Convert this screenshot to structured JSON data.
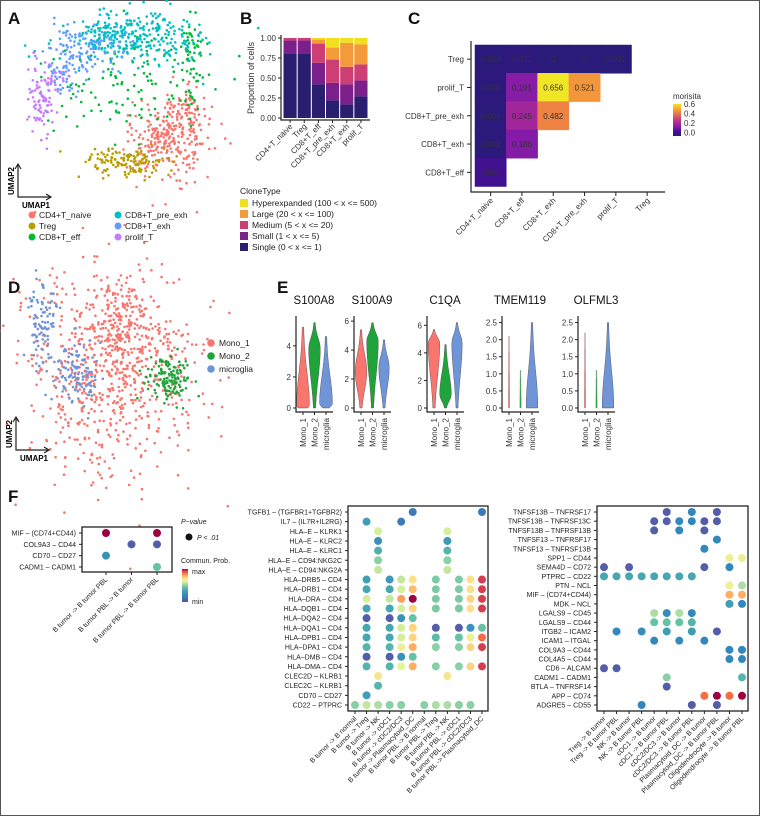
{
  "panels": {
    "A": "A",
    "B": "B",
    "C": "C",
    "D": "D",
    "E": "E",
    "F": "F"
  },
  "chart_data": [
    {
      "id": "A",
      "type": "scatter",
      "xlabel": "UMAP1",
      "ylabel": "UMAP2",
      "legend": [
        {
          "label": "CD4+T_naive",
          "color": "#f8766d"
        },
        {
          "label": "Treg",
          "color": "#b79f00"
        },
        {
          "label": "CD8+T_eff",
          "color": "#00ba38"
        },
        {
          "label": "CD8+T_pre_exh",
          "color": "#00bfc4"
        },
        {
          "label": "CD8+T_exh",
          "color": "#619cff"
        },
        {
          "label": "prolif_T",
          "color": "#c77cff"
        }
      ]
    },
    {
      "id": "B",
      "type": "bar",
      "stacked": true,
      "title": "",
      "xlabel": "",
      "ylabel": "Proportion of cells",
      "ylim": [
        0,
        1
      ],
      "yticks": [
        "0.00",
        "0.25",
        "0.50",
        "0.75",
        "1.00"
      ],
      "categories": [
        "CD4+T_naive",
        "Treg",
        "CD8+T_eff",
        "CD8+T_pre_exh",
        "CD8+T_exh",
        "prolif_T"
      ],
      "legend_title": "CloneType",
      "series": [
        {
          "name": "Single (0 < x <= 1)",
          "color": "#2a1f6e",
          "values": [
            0.81,
            0.81,
            0.42,
            0.22,
            0.17,
            0.27
          ]
        },
        {
          "name": "Small (1 < x <= 5)",
          "color": "#7b1f8a",
          "values": [
            0.16,
            0.16,
            0.27,
            0.22,
            0.25,
            0.2
          ]
        },
        {
          "name": "Medium (5 < x <= 20)",
          "color": "#cc3e74",
          "values": [
            0.03,
            0.03,
            0.24,
            0.29,
            0.22,
            0.2
          ]
        },
        {
          "name": "Large (20 < x <= 100)",
          "color": "#f39a3a",
          "values": [
            0,
            0,
            0.05,
            0.15,
            0.3,
            0.25
          ]
        },
        {
          "name": "Hyperexpanded (100 < x <= 500)",
          "color": "#f0e020",
          "values": [
            0,
            0,
            0.02,
            0.12,
            0.06,
            0.08
          ]
        }
      ]
    },
    {
      "id": "C",
      "type": "heatmap",
      "rows": [
        "Treg",
        "prolif_T",
        "CD8+T_pre_exh",
        "CD8+T_exh",
        "CD8+T_eff"
      ],
      "cols": [
        "CD4+T_naive",
        "CD8+T_eff",
        "CD8+T_exh",
        "CD8+T_pre_exh",
        "prolif_T",
        "Treg"
      ],
      "values": [
        [
          "0.004",
          "0.011",
          "0",
          "0",
          "0.001",
          null
        ],
        [
          "0.008",
          "0.191",
          "0.656",
          "0.521",
          null,
          null
        ],
        [
          "0.006",
          "0.245",
          "0.482",
          null,
          null,
          null
        ],
        [
          "0.002",
          "0.186",
          null,
          null,
          null,
          null
        ],
        [
          "0.066",
          null,
          null,
          null,
          null,
          null
        ]
      ],
      "legend_title": "morisita",
      "legend_ticks": [
        "0.6",
        "0.4",
        "0.2",
        "0.0"
      ],
      "range": [
        0,
        0.656
      ]
    },
    {
      "id": "D",
      "type": "scatter",
      "xlabel": "UMAP1",
      "ylabel": "UMAP2",
      "legend": [
        {
          "label": "Mono_1",
          "color": "#f8766d"
        },
        {
          "label": "Mono_2",
          "color": "#1fa33a"
        },
        {
          "label": "microglia",
          "color": "#6f94d8"
        }
      ]
    },
    {
      "id": "E",
      "type": "violin",
      "groups": [
        "Mono_1",
        "Mono_2",
        "microglia"
      ],
      "colors": [
        "#f8766d",
        "#1fa33a",
        "#6f94d8"
      ],
      "genes": [
        {
          "title": "S100A8",
          "yticks": [
            "0",
            "2",
            "4"
          ],
          "tickvals": [
            0,
            2,
            4
          ],
          "violins": [
            {
              "max": 5.2,
              "mode": 0.2,
              "width": 1
            },
            {
              "max": 5.5,
              "mode": 3.8,
              "width": 0.9
            },
            {
              "max": 4.6,
              "mode": 0.3,
              "width": 1
            }
          ]
        },
        {
          "title": "S100A9",
          "yticks": [
            "0",
            "2",
            "4",
            "6"
          ],
          "tickvals": [
            0,
            2,
            4,
            6
          ],
          "violins": [
            {
              "max": 5.4,
              "mode": 2.5,
              "width": 0.9
            },
            {
              "max": 5.9,
              "mode": 4.6,
              "width": 0.9
            },
            {
              "max": 4.7,
              "mode": 2.8,
              "width": 0.8
            }
          ]
        },
        {
          "title": "C1QA",
          "yticks": [
            "0",
            "2",
            "4",
            "6"
          ],
          "tickvals": [
            0,
            2,
            4,
            6
          ],
          "violins": [
            {
              "max": 5.7,
              "mode": 4.7,
              "width": 0.9
            },
            {
              "max": 4.6,
              "mode": 1.0,
              "width": 0.9
            },
            {
              "max": 6.2,
              "mode": 4.7,
              "width": 0.8
            }
          ]
        },
        {
          "title": "TMEM119",
          "yticks": [
            "0.0",
            "0.5",
            "1.0",
            "1.5",
            "2.0",
            "2.5"
          ],
          "tickvals": [
            0,
            0.5,
            1,
            1.5,
            2,
            2.5
          ],
          "violins": [
            {
              "max": 2.1,
              "mode": 0,
              "width": 0.05
            },
            {
              "max": 1.1,
              "mode": 0,
              "width": 0.05
            },
            {
              "max": 2.5,
              "mode": 0.05,
              "width": 0.9
            }
          ]
        },
        {
          "title": "OLFML3",
          "yticks": [
            "0.0",
            "0.5",
            "1.0",
            "1.5",
            "2.0",
            "2.5"
          ],
          "tickvals": [
            0,
            0.5,
            1,
            1.5,
            2,
            2.5
          ],
          "violins": [
            {
              "max": 2.2,
              "mode": 0,
              "width": 0.05
            },
            {
              "max": 1.1,
              "mode": 0,
              "width": 0.05
            },
            {
              "max": 2.5,
              "mode": 0.05,
              "width": 0.9
            }
          ]
        }
      ]
    },
    {
      "id": "F1",
      "type": "dotplot",
      "rows": [
        "MIF – (CD74+CD44)",
        "COL9A3 – CD44",
        "CD70 – CD27",
        "CADM1 – CADM1"
      ],
      "cols": [
        "B tumor -> B tumor PBL",
        "B tumor PBL -> B tumor",
        "B tumor PBL -> B tumor PBL"
      ],
      "values": [
        [
          1.0,
          null,
          1.0
        ],
        [
          null,
          0.05,
          0.05
        ],
        [
          0.25,
          null,
          null
        ],
        [
          null,
          null,
          0.45
        ]
      ],
      "legend": {
        "pvalue_title": "P−value",
        "pvalue_item": "P < .01",
        "prob_title": "Commun. Prob.",
        "max": "max",
        "min": "min"
      }
    },
    {
      "id": "F2",
      "type": "dotplot",
      "rows": [
        "TGFB1 – (TGFBR1+TGFBR2)",
        "IL7 – (IL7R+IL2RG)",
        "HLA–E – KLRK1",
        "HLA–E – KLRC2",
        "HLA–E – KLRC1",
        "HLA–E – CD94:NKG2C",
        "HLA–E – CD94:NKG2A",
        "HLA–DRB5 – CD4",
        "HLA–DRB1 – CD4",
        "HLA–DRA – CD4",
        "HLA–DQB1 – CD4",
        "HLA–DQA2 – CD4",
        "HLA–DQA1 – CD4",
        "HLA–DPB1 – CD4",
        "HLA–DPA1 – CD4",
        "HLA–DMB – CD4",
        "HLA–DMA – CD4",
        "CLEC2D – KLRB1",
        "CLEC2C – KLRB1",
        "CD70 – CD27",
        "CD22 – PTPRC"
      ],
      "cols": [
        "B tumor -> B normal",
        "B tumor -> Treg",
        "B tumor -> NK",
        "B tumor -> cDC1",
        "B tumor -> cDC2/DC3",
        "B tumor -> Plasmacytoid_DC",
        "B tumor PBL -> B normal",
        "B tumor PBL -> Treg",
        "B tumor PBL -> NK",
        "B tumor PBL -> cDC1",
        "B tumor PBL -> cDC2/DC3",
        "B tumor PBL -> Plasmacytoid_DC"
      ],
      "values": [
        [
          null,
          null,
          null,
          null,
          null,
          0.15,
          null,
          null,
          null,
          null,
          null,
          0.15
        ],
        [
          null,
          0.3,
          null,
          null,
          0.15,
          null,
          null,
          null,
          null,
          null,
          null,
          null
        ],
        [
          null,
          null,
          0.6,
          null,
          null,
          null,
          null,
          null,
          0.6,
          null,
          null,
          null
        ],
        [
          null,
          null,
          0.25,
          null,
          null,
          null,
          null,
          null,
          0.28,
          null,
          null,
          null
        ],
        [
          null,
          null,
          0.38,
          null,
          null,
          null,
          null,
          null,
          0.4,
          null,
          null,
          null
        ],
        [
          null,
          null,
          0.5,
          null,
          null,
          null,
          null,
          null,
          0.5,
          null,
          null,
          null
        ],
        [
          null,
          null,
          0.58,
          null,
          null,
          null,
          null,
          null,
          0.58,
          null,
          null,
          null
        ],
        [
          null,
          0.3,
          null,
          0.28,
          0.58,
          0.72,
          null,
          0.48,
          null,
          0.48,
          0.72,
          0.94
        ],
        [
          null,
          0.35,
          null,
          0.35,
          0.6,
          0.78,
          null,
          0.48,
          null,
          0.48,
          0.72,
          0.94
        ],
        [
          null,
          0.6,
          null,
          0.58,
          0.82,
          1.0,
          null,
          0.48,
          null,
          0.48,
          0.74,
          0.94
        ],
        [
          null,
          0.35,
          null,
          0.35,
          0.6,
          0.74,
          null,
          0.48,
          null,
          0.48,
          0.72,
          0.94
        ],
        [
          null,
          0.05,
          null,
          0.05,
          0.25,
          0.45,
          null,
          null,
          null,
          null,
          null,
          null
        ],
        [
          null,
          0.35,
          null,
          0.35,
          0.6,
          0.74,
          null,
          0.05,
          null,
          0.05,
          0.25,
          0.45
        ],
        [
          null,
          0.35,
          null,
          0.35,
          0.6,
          0.74,
          null,
          0.42,
          null,
          0.45,
          0.65,
          0.88
        ],
        [
          null,
          0.4,
          null,
          0.4,
          0.65,
          0.8,
          null,
          0.5,
          null,
          0.5,
          0.74,
          0.94
        ],
        [
          null,
          0.05,
          null,
          0.05,
          0.25,
          0.45,
          null,
          null,
          null,
          null,
          null,
          null
        ],
        [
          null,
          0.4,
          null,
          0.4,
          0.62,
          0.8,
          null,
          0.5,
          null,
          0.5,
          0.74,
          0.94
        ],
        [
          null,
          null,
          0.7,
          null,
          null,
          null,
          null,
          null,
          0.7,
          null,
          null,
          null
        ],
        [
          null,
          null,
          0.4,
          null,
          null,
          null,
          null,
          null,
          null,
          null,
          null,
          null
        ],
        [
          null,
          0.3,
          null,
          null,
          null,
          null,
          null,
          null,
          null,
          null,
          null,
          null
        ],
        [
          0.5,
          0.58,
          0.55,
          0.5,
          0.5,
          null,
          0.5,
          0.55,
          0.55,
          0.5,
          0.5,
          null
        ]
      ]
    },
    {
      "id": "F3",
      "type": "dotplot",
      "rows": [
        "TNFSF13B – TNFRSF17",
        "TNFSF13B – TNFRSF13C",
        "TNFSF13B – TNFRSF13B",
        "TNFSF13 – TNFRSF17",
        "TNFSF13 – TNFRSF13B",
        "SPP1 – CD44",
        "SEMA4D – CD72",
        "PTPRC – CD22",
        "PTN – NCL",
        "MIF – (CD74+CD44)",
        "MDK – NCL",
        "LGALS9 – CD45",
        "LGALS9 – CD44",
        "ITGB2 – ICAM2",
        "ICAM1 – ITGAL",
        "COL9A3 – CD44",
        "COL4A5 – CD44",
        "CD6 – ALCAM",
        "CADM1 – CADM1",
        "BTLA – TNFRSF14",
        "APP – CD74",
        "ADGRE5 – CD55"
      ],
      "cols": [
        "Treg -> B tumor",
        "Treg -> B tumor PBL",
        "NK -> B tumor",
        "NK -> B tumor PBL",
        "cDC1 -> B tumor",
        "cDC1 -> B tumor PBL",
        "cDC2/DC3 -> B tumor",
        "cDC2/DC3 -> B tumor PBL",
        "Plasmacytoid_DC -> B tumor",
        "Plasmacytoid_DC -> B tumor PBL",
        "Oligodendrocyte -> B tumor",
        "Oligodendrocyte -> B tumor PBL"
      ],
      "values": [
        [
          null,
          null,
          null,
          null,
          null,
          0.05,
          null,
          0.2,
          null,
          0.05,
          null,
          null
        ],
        [
          null,
          null,
          null,
          null,
          0.05,
          0.05,
          0.2,
          0.2,
          0.05,
          0.05,
          null,
          null
        ],
        [
          null,
          null,
          null,
          null,
          0.05,
          null,
          0.2,
          null,
          0.05,
          null,
          null,
          null
        ],
        [
          null,
          null,
          null,
          null,
          null,
          null,
          null,
          null,
          null,
          0.2,
          null,
          null
        ],
        [
          null,
          null,
          null,
          null,
          null,
          null,
          null,
          null,
          0.2,
          null,
          null,
          null
        ],
        [
          null,
          null,
          null,
          null,
          null,
          null,
          null,
          null,
          null,
          null,
          0.65,
          0.65
        ],
        [
          0.05,
          null,
          0.05,
          null,
          null,
          null,
          null,
          null,
          0.05,
          null,
          0.2,
          null
        ],
        [
          0.35,
          0.35,
          0.35,
          0.35,
          0.35,
          0.35,
          0.35,
          0.35,
          null,
          null,
          null,
          null
        ],
        [
          null,
          null,
          null,
          null,
          null,
          null,
          null,
          null,
          null,
          null,
          0.65,
          0.55
        ],
        [
          null,
          null,
          null,
          null,
          null,
          null,
          null,
          null,
          null,
          null,
          0.8,
          0.8
        ],
        [
          null,
          null,
          null,
          null,
          null,
          null,
          null,
          null,
          null,
          null,
          0.3,
          0.2
        ],
        [
          null,
          null,
          null,
          null,
          0.55,
          0.22,
          0.55,
          0.2,
          null,
          null,
          null,
          null
        ],
        [
          null,
          null,
          null,
          null,
          0.45,
          0.45,
          0.45,
          0.4,
          null,
          null,
          null,
          null
        ],
        [
          null,
          0.2,
          null,
          0.22,
          null,
          0.3,
          null,
          0.3,
          null,
          0.05,
          null,
          null
        ],
        [
          null,
          null,
          null,
          null,
          0.2,
          null,
          0.22,
          null,
          0.2,
          null,
          null,
          null
        ],
        [
          null,
          null,
          null,
          null,
          null,
          null,
          null,
          null,
          null,
          null,
          0.2,
          0.2
        ],
        [
          null,
          null,
          null,
          null,
          null,
          null,
          null,
          null,
          null,
          null,
          0.2,
          0.2
        ],
        [
          0.05,
          0.05,
          null,
          null,
          null,
          null,
          null,
          null,
          null,
          null,
          null,
          null
        ],
        [
          null,
          null,
          null,
          null,
          null,
          0.5,
          null,
          null,
          null,
          null,
          null,
          0.4
        ],
        [
          null,
          null,
          null,
          null,
          null,
          0.05,
          null,
          null,
          null,
          null,
          null,
          null
        ],
        [
          null,
          null,
          null,
          null,
          null,
          null,
          null,
          null,
          0.88,
          1.0,
          0.88,
          1.0
        ],
        [
          null,
          null,
          null,
          0.2,
          null,
          null,
          null,
          0.05,
          null,
          0.05,
          null,
          null
        ]
      ]
    }
  ]
}
